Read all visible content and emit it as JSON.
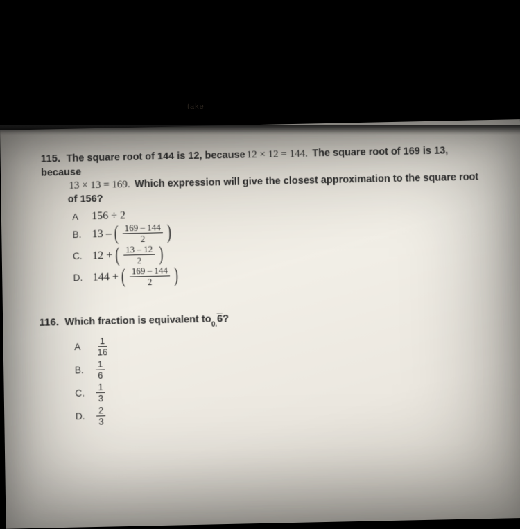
{
  "tab_hint": "take",
  "q115": {
    "number": "115.",
    "line1_a": "The square root of 144 is 12, because",
    "line1_math": "12 × 12 = 144.",
    "line1_b": "The square root of 169 is 13, because",
    "line2_math": "13 × 13 = 169.",
    "line2_b": "Which expression will give the closest approximation to the square root of 156?",
    "choices": {
      "A": {
        "letter": "A",
        "plain": "156 ÷ 2"
      },
      "B": {
        "letter": "B.",
        "lead": "13 –",
        "num": "169 – 144",
        "den": "2"
      },
      "C": {
        "letter": "C.",
        "lead": "12 +",
        "num": "13 – 12",
        "den": "2"
      },
      "D": {
        "letter": "D.",
        "lead": "144 +",
        "num": "169 – 144",
        "den": "2"
      }
    }
  },
  "q116": {
    "number": "116.",
    "text_a": "Which fraction is equivalent to",
    "sub": "0.",
    "rep": "6",
    "text_b": "?",
    "choices": {
      "A": {
        "letter": "A",
        "num": "1",
        "den": "16"
      },
      "B": {
        "letter": "B.",
        "num": "1",
        "den": "6"
      },
      "C": {
        "letter": "C.",
        "num": "1",
        "den": "3"
      },
      "D": {
        "letter": "D.",
        "num": "2",
        "den": "3"
      }
    }
  },
  "colors": {
    "background_black": "#000000",
    "paper_light": "#efece4",
    "paper_shadow": "#d6d2c9",
    "text": "#2b2b2b"
  }
}
